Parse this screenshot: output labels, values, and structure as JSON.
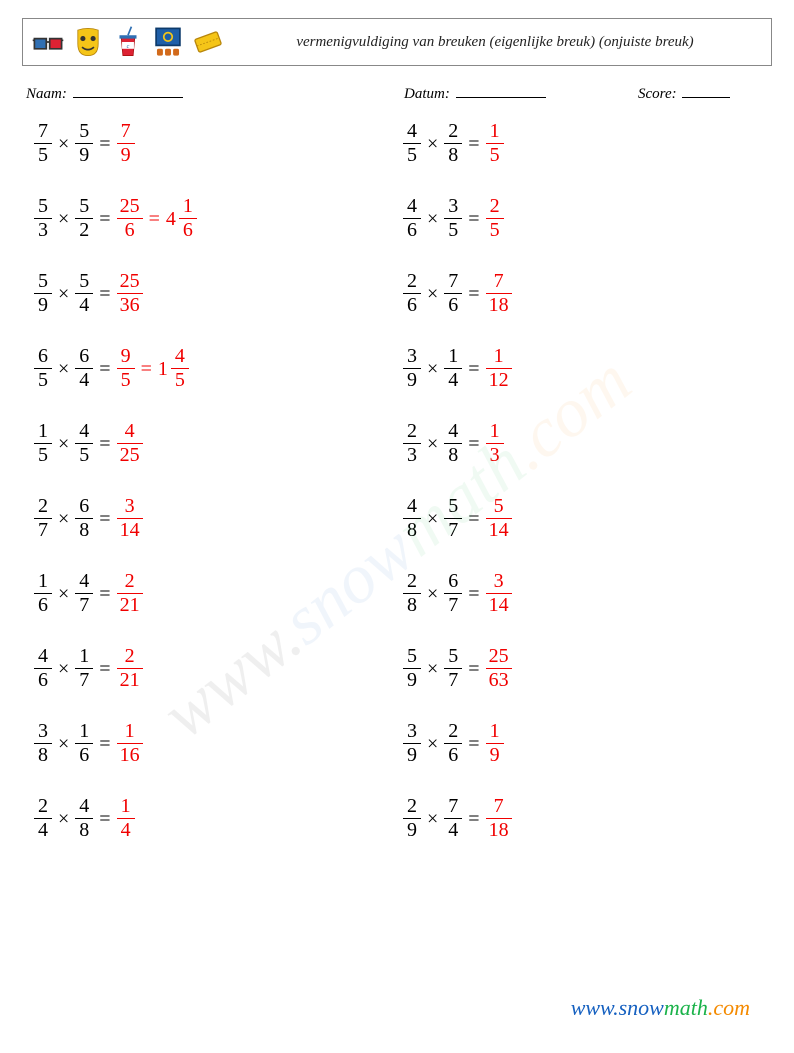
{
  "header": {
    "title": "vermenigvuldiging van breuken (eigenlijke breuk) (onjuiste breuk)"
  },
  "meta": {
    "name_label": "Naam:",
    "date_label": "Datum:",
    "score_label": "Score:"
  },
  "brand": {
    "prefix": "www.",
    "a": "snow",
    "b": "math",
    "c": ".com"
  },
  "colors": {
    "answer": "#f00000",
    "text": "#000000",
    "border": "#888888",
    "brand_blue": "#1560c0",
    "brand_green": "#1bb24a",
    "brand_orange": "#f48a00"
  },
  "problems": {
    "left": [
      {
        "a": {
          "n": "7",
          "d": "5"
        },
        "b": {
          "n": "5",
          "d": "9"
        },
        "ans": [
          {
            "n": "7",
            "d": "9"
          }
        ]
      },
      {
        "a": {
          "n": "5",
          "d": "3"
        },
        "b": {
          "n": "5",
          "d": "2"
        },
        "ans": [
          {
            "n": "25",
            "d": "6"
          },
          {
            "w": "4",
            "n": "1",
            "d": "6"
          }
        ]
      },
      {
        "a": {
          "n": "5",
          "d": "9"
        },
        "b": {
          "n": "5",
          "d": "4"
        },
        "ans": [
          {
            "n": "25",
            "d": "36"
          }
        ]
      },
      {
        "a": {
          "n": "6",
          "d": "5"
        },
        "b": {
          "n": "6",
          "d": "4"
        },
        "ans": [
          {
            "n": "9",
            "d": "5"
          },
          {
            "w": "1",
            "n": "4",
            "d": "5"
          }
        ]
      },
      {
        "a": {
          "n": "1",
          "d": "5"
        },
        "b": {
          "n": "4",
          "d": "5"
        },
        "ans": [
          {
            "n": "4",
            "d": "25"
          }
        ]
      },
      {
        "a": {
          "n": "2",
          "d": "7"
        },
        "b": {
          "n": "6",
          "d": "8"
        },
        "ans": [
          {
            "n": "3",
            "d": "14"
          }
        ]
      },
      {
        "a": {
          "n": "1",
          "d": "6"
        },
        "b": {
          "n": "4",
          "d": "7"
        },
        "ans": [
          {
            "n": "2",
            "d": "21"
          }
        ]
      },
      {
        "a": {
          "n": "4",
          "d": "6"
        },
        "b": {
          "n": "1",
          "d": "7"
        },
        "ans": [
          {
            "n": "2",
            "d": "21"
          }
        ]
      },
      {
        "a": {
          "n": "3",
          "d": "8"
        },
        "b": {
          "n": "1",
          "d": "6"
        },
        "ans": [
          {
            "n": "1",
            "d": "16"
          }
        ]
      },
      {
        "a": {
          "n": "2",
          "d": "4"
        },
        "b": {
          "n": "4",
          "d": "8"
        },
        "ans": [
          {
            "n": "1",
            "d": "4"
          }
        ]
      }
    ],
    "right": [
      {
        "a": {
          "n": "4",
          "d": "5"
        },
        "b": {
          "n": "2",
          "d": "8"
        },
        "ans": [
          {
            "n": "1",
            "d": "5"
          }
        ]
      },
      {
        "a": {
          "n": "4",
          "d": "6"
        },
        "b": {
          "n": "3",
          "d": "5"
        },
        "ans": [
          {
            "n": "2",
            "d": "5"
          }
        ]
      },
      {
        "a": {
          "n": "2",
          "d": "6"
        },
        "b": {
          "n": "7",
          "d": "6"
        },
        "ans": [
          {
            "n": "7",
            "d": "18"
          }
        ]
      },
      {
        "a": {
          "n": "3",
          "d": "9"
        },
        "b": {
          "n": "1",
          "d": "4"
        },
        "ans": [
          {
            "n": "1",
            "d": "12"
          }
        ]
      },
      {
        "a": {
          "n": "2",
          "d": "3"
        },
        "b": {
          "n": "4",
          "d": "8"
        },
        "ans": [
          {
            "n": "1",
            "d": "3"
          }
        ]
      },
      {
        "a": {
          "n": "4",
          "d": "8"
        },
        "b": {
          "n": "5",
          "d": "7"
        },
        "ans": [
          {
            "n": "5",
            "d": "14"
          }
        ]
      },
      {
        "a": {
          "n": "2",
          "d": "8"
        },
        "b": {
          "n": "6",
          "d": "7"
        },
        "ans": [
          {
            "n": "3",
            "d": "14"
          }
        ]
      },
      {
        "a": {
          "n": "5",
          "d": "9"
        },
        "b": {
          "n": "5",
          "d": "7"
        },
        "ans": [
          {
            "n": "25",
            "d": "63"
          }
        ]
      },
      {
        "a": {
          "n": "3",
          "d": "9"
        },
        "b": {
          "n": "2",
          "d": "6"
        },
        "ans": [
          {
            "n": "1",
            "d": "9"
          }
        ]
      },
      {
        "a": {
          "n": "2",
          "d": "9"
        },
        "b": {
          "n": "7",
          "d": "4"
        },
        "ans": [
          {
            "n": "7",
            "d": "18"
          }
        ]
      }
    ]
  }
}
